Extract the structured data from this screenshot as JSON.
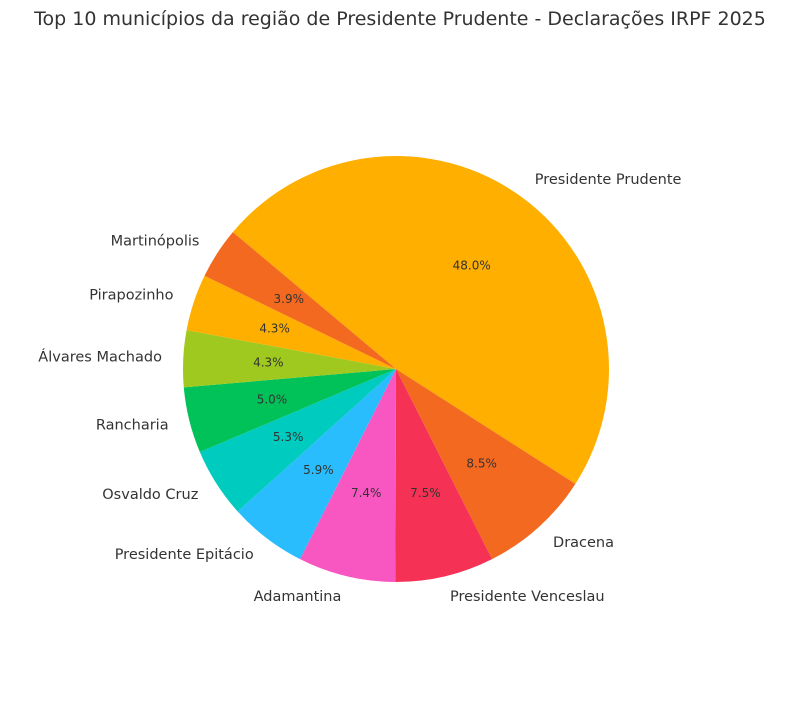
{
  "chart_data": {
    "type": "pie",
    "title": "Top 10 municípios da região de Presidente Prudente - Declarações IRPF 2025",
    "categories": [
      "Presidente Prudente",
      "Dracena",
      "Presidente Venceslau",
      "Adamantina",
      "Presidente Epitácio",
      "Osvaldo Cruz",
      "Rancharia",
      "Álvares Machado",
      "Pirapozinho",
      "Martinópolis"
    ],
    "values": [
      48.0,
      8.5,
      7.5,
      7.4,
      5.9,
      5.3,
      5.0,
      4.3,
      4.3,
      3.9
    ],
    "value_labels": [
      "48.0%",
      "8.5%",
      "7.5%",
      "7.4%",
      "5.9%",
      "5.3%",
      "5.0%",
      "4.3%",
      "4.3%",
      "3.9%"
    ],
    "colors": [
      "#FFAF00",
      "#F46920",
      "#F53255",
      "#F857C1",
      "#29BDFD",
      "#00CBBF",
      "#01C159",
      "#9FC91F",
      "#FFAF00",
      "#F46920"
    ],
    "start_angle_deg": 140,
    "direction": "clockwise",
    "legend": "none"
  }
}
